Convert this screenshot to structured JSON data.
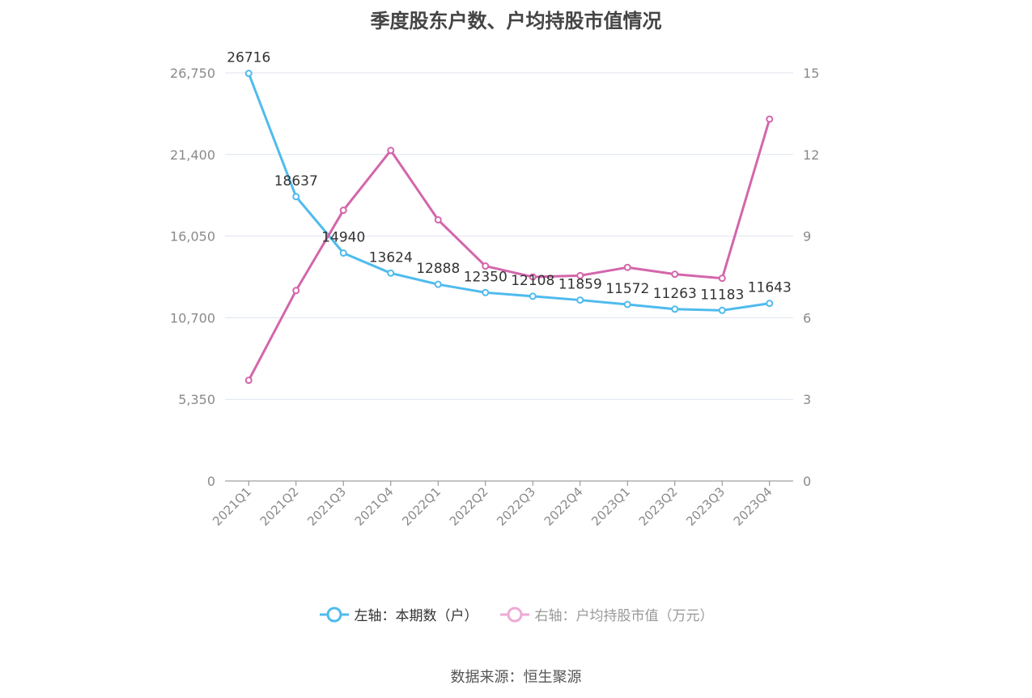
{
  "title": "季度股东户数、户均持股市值情况",
  "source_label": "数据来源：恒生聚源",
  "legend": {
    "left": "左轴：本期数（户）",
    "right": "右轴：户均持股市值（万元）"
  },
  "colors": {
    "left_series": "#4fbbee",
    "right_series": "#d366ab",
    "right_legend": "#eeaad5",
    "grid": "#dde3ee",
    "axis": "#888888"
  },
  "chart_data": {
    "type": "line",
    "title": "季度股东户数、户均持股市值情况",
    "categories": [
      "2021Q1",
      "2021Q2",
      "2021Q3",
      "2021Q4",
      "2022Q1",
      "2022Q2",
      "2022Q3",
      "2022Q4",
      "2023Q1",
      "2023Q2",
      "2023Q3",
      "2023Q4"
    ],
    "left_axis": {
      "ticks": [
        "0",
        "5,350",
        "10,700",
        "16,050",
        "21,400",
        "26,750"
      ],
      "range": [
        0,
        26750
      ]
    },
    "right_axis": {
      "ticks": [
        "0",
        "3",
        "6",
        "9",
        "12",
        "15"
      ],
      "range": [
        0,
        15
      ]
    },
    "series": [
      {
        "name": "左轴：本期数（户）",
        "axis": "left",
        "values": [
          26716,
          18637,
          14940,
          13624,
          12888,
          12350,
          12108,
          11859,
          11572,
          11263,
          11183,
          11643
        ],
        "labels": [
          "26716",
          "18637",
          "14940",
          "13624",
          "12888",
          "12350",
          "12108",
          "11859",
          "11572",
          "11263",
          "11183",
          "11643"
        ]
      },
      {
        "name": "右轴：户均持股市值（万元）",
        "axis": "right",
        "values": [
          3.7,
          7.0,
          9.95,
          12.15,
          9.6,
          7.9,
          7.5,
          7.55,
          7.85,
          7.6,
          7.45,
          13.3
        ]
      }
    ],
    "grid": true,
    "legend_position": "bottom"
  }
}
